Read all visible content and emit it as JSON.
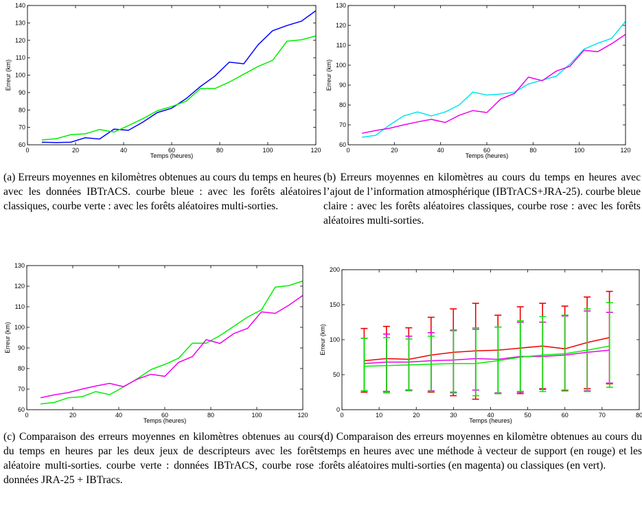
{
  "captions": {
    "a": "(a) Erreurs moyennes en kilomètres obtenues au cours du temps en heures avec les données IBTrACS. courbe bleue : avec les forêts aléatoires classiques, courbe verte : avec les forêts aléatoires multi-sorties.",
    "b": "(b) Erreurs moyennes en kilomètres au cours du temps en heures avec l’ajout de l’information atmosphérique (IBTrACS+JRA-25). courbe bleue claire : avec les forêts aléatoires classiques, courbe rose : avec les forêts aléatoires multi-sorties.",
    "c": "(c) Comparaison des erreurs moyennes en kilomètres obtenues au cours du temps en heures par les deux jeux de descripteurs avec les forêts aléatoire multi-sorties. courbe verte : données IBTrACS, courbe rose : données JRA-25 + IBTracs.",
    "d": "(d) Comparaison des erreurs moyennes en kilomètre obtenues au cours du temps en heures avec une méthode à vecteur de support (en rouge) et les forêts aléatoires multi-sorties (en magenta) ou classiques (en vert)."
  },
  "chart_data": [
    {
      "id": "a",
      "type": "line",
      "xlabel": "Temps (heures)",
      "ylabel": "Erreur (km)",
      "xlim": [
        0,
        120
      ],
      "ylim": [
        60,
        140
      ],
      "xticks": [
        0,
        20,
        40,
        60,
        80,
        100,
        120
      ],
      "yticks": [
        60,
        70,
        80,
        90,
        100,
        110,
        120,
        130,
        140
      ],
      "grid": false,
      "series": [
        {
          "color": "#0000ff",
          "x": [
            6,
            12,
            18,
            24,
            30,
            36,
            42,
            48,
            54,
            60,
            66,
            72,
            78,
            84,
            90,
            96,
            102,
            108,
            114,
            120
          ],
          "y": [
            61.5,
            61.3,
            61.5,
            64,
            63.3,
            69,
            68.3,
            73,
            78.5,
            81,
            86.5,
            93.5,
            99.5,
            107.5,
            106.5,
            117.5,
            125.5,
            128.5,
            131,
            137
          ]
        },
        {
          "color": "#00ee00",
          "x": [
            6,
            12,
            18,
            24,
            30,
            36,
            42,
            48,
            54,
            60,
            66,
            72,
            78,
            84,
            90,
            96,
            102,
            108,
            114,
            120
          ],
          "y": [
            62.8,
            63.5,
            65.8,
            66.3,
            68.8,
            67.3,
            71,
            75,
            79.5,
            82,
            85,
            92.3,
            92.3,
            96,
            100.5,
            105,
            108.5,
            119.5,
            120.3,
            122.5
          ]
        }
      ]
    },
    {
      "id": "b",
      "type": "line",
      "xlabel": "Temps (heures)",
      "ylabel": "Erreur (km)",
      "xlim": [
        0,
        120
      ],
      "ylim": [
        60,
        130
      ],
      "xticks": [
        0,
        20,
        40,
        60,
        80,
        100,
        120
      ],
      "yticks": [
        60,
        70,
        80,
        90,
        100,
        110,
        120,
        130
      ],
      "grid": false,
      "series": [
        {
          "color": "#00e5ee",
          "x": [
            6,
            12,
            18,
            24,
            30,
            36,
            42,
            48,
            54,
            60,
            66,
            72,
            78,
            84,
            90,
            96,
            102,
            108,
            114,
            120
          ],
          "y": [
            63.8,
            64.8,
            70,
            74.5,
            76.5,
            74.5,
            76.5,
            80,
            86.5,
            85,
            85.5,
            86.5,
            90.5,
            92.5,
            94.5,
            100.5,
            108,
            111,
            113.5,
            122
          ]
        },
        {
          "color": "#ee00ee",
          "x": [
            6,
            12,
            18,
            24,
            30,
            36,
            42,
            48,
            54,
            60,
            66,
            72,
            78,
            84,
            90,
            96,
            102,
            108,
            114,
            120
          ],
          "y": [
            65.8,
            67.2,
            68.3,
            70,
            71.5,
            72.8,
            71.2,
            74.8,
            77.2,
            76.2,
            83,
            85.8,
            94,
            92.2,
            97,
            99.5,
            107.5,
            106.8,
            110.8,
            115.5
          ]
        }
      ]
    },
    {
      "id": "c",
      "type": "line",
      "xlabel": "Temps (heures)",
      "ylabel": "Erreur (km)",
      "xlim": [
        0,
        120
      ],
      "ylim": [
        60,
        130
      ],
      "xticks": [
        0,
        20,
        40,
        60,
        80,
        100,
        120
      ],
      "yticks": [
        60,
        70,
        80,
        90,
        100,
        110,
        120,
        130
      ],
      "grid": false,
      "series": [
        {
          "color": "#00ee00",
          "x": [
            6,
            12,
            18,
            24,
            30,
            36,
            42,
            48,
            54,
            60,
            66,
            72,
            78,
            84,
            90,
            96,
            102,
            108,
            114,
            120
          ],
          "y": [
            62.8,
            63.5,
            65.8,
            66.3,
            68.8,
            67.3,
            71,
            75,
            79.5,
            82,
            85,
            92.3,
            92.3,
            96,
            100.5,
            105,
            108.5,
            119.5,
            120.3,
            122.5
          ]
        },
        {
          "color": "#ee00ee",
          "x": [
            6,
            12,
            18,
            24,
            30,
            36,
            42,
            48,
            54,
            60,
            66,
            72,
            78,
            84,
            90,
            96,
            102,
            108,
            114,
            120
          ],
          "y": [
            65.8,
            67.2,
            68.3,
            70,
            71.5,
            72.8,
            71.2,
            74.8,
            77.2,
            76.2,
            83,
            85.8,
            94,
            92.2,
            97,
            99.5,
            107.5,
            106.8,
            110.8,
            115.5
          ]
        }
      ]
    },
    {
      "id": "d",
      "type": "line",
      "xlabel": "Temps (heures)",
      "ylabel": "Erreur (km)",
      "xlim": [
        0,
        80
      ],
      "ylim": [
        0,
        200
      ],
      "xticks": [
        0,
        10,
        20,
        30,
        40,
        50,
        60,
        70,
        80
      ],
      "yticks": [
        0,
        50,
        100,
        150,
        200
      ],
      "grid": false,
      "series": [
        {
          "color": "#ee0000",
          "x": [
            6,
            12,
            18,
            24,
            30,
            36,
            42,
            48,
            54,
            60,
            66,
            72
          ],
          "y": [
            70,
            73,
            72,
            78,
            82,
            84,
            85,
            88,
            91,
            87,
            96,
            103
          ],
          "err_low": [
            25,
            26,
            28,
            25,
            20,
            15,
            23,
            23,
            30,
            27,
            30,
            37
          ],
          "err_high": [
            116,
            119,
            117,
            132,
            144,
            152,
            135,
            147,
            152,
            148,
            161,
            169
          ]
        },
        {
          "color": "#ee00ee",
          "x": [
            6,
            12,
            18,
            24,
            30,
            36,
            42,
            48,
            54,
            60,
            66,
            72
          ],
          "y": [
            66,
            68,
            68,
            70,
            71,
            73,
            72,
            76,
            76,
            78,
            82,
            85
          ],
          "err_low": [
            27,
            26,
            28,
            27,
            25,
            28,
            24,
            25,
            29,
            28,
            27,
            38
          ],
          "err_high": [
            102,
            108,
            105,
            110,
            113,
            115,
            118,
            125,
            125,
            134,
            141,
            139
          ]
        },
        {
          "color": "#00ee00",
          "x": [
            6,
            12,
            18,
            24,
            30,
            36,
            42,
            48,
            54,
            60,
            66,
            72
          ],
          "y": [
            62,
            63,
            64,
            65,
            66,
            66,
            70,
            75,
            78,
            80,
            85,
            91
          ],
          "err_low": [
            27,
            24,
            27,
            26,
            24,
            20,
            23,
            26,
            26,
            28,
            26,
            32
          ],
          "err_high": [
            102,
            103,
            101,
            105,
            114,
            117,
            118,
            127,
            133,
            135,
            144,
            153
          ]
        }
      ]
    }
  ]
}
